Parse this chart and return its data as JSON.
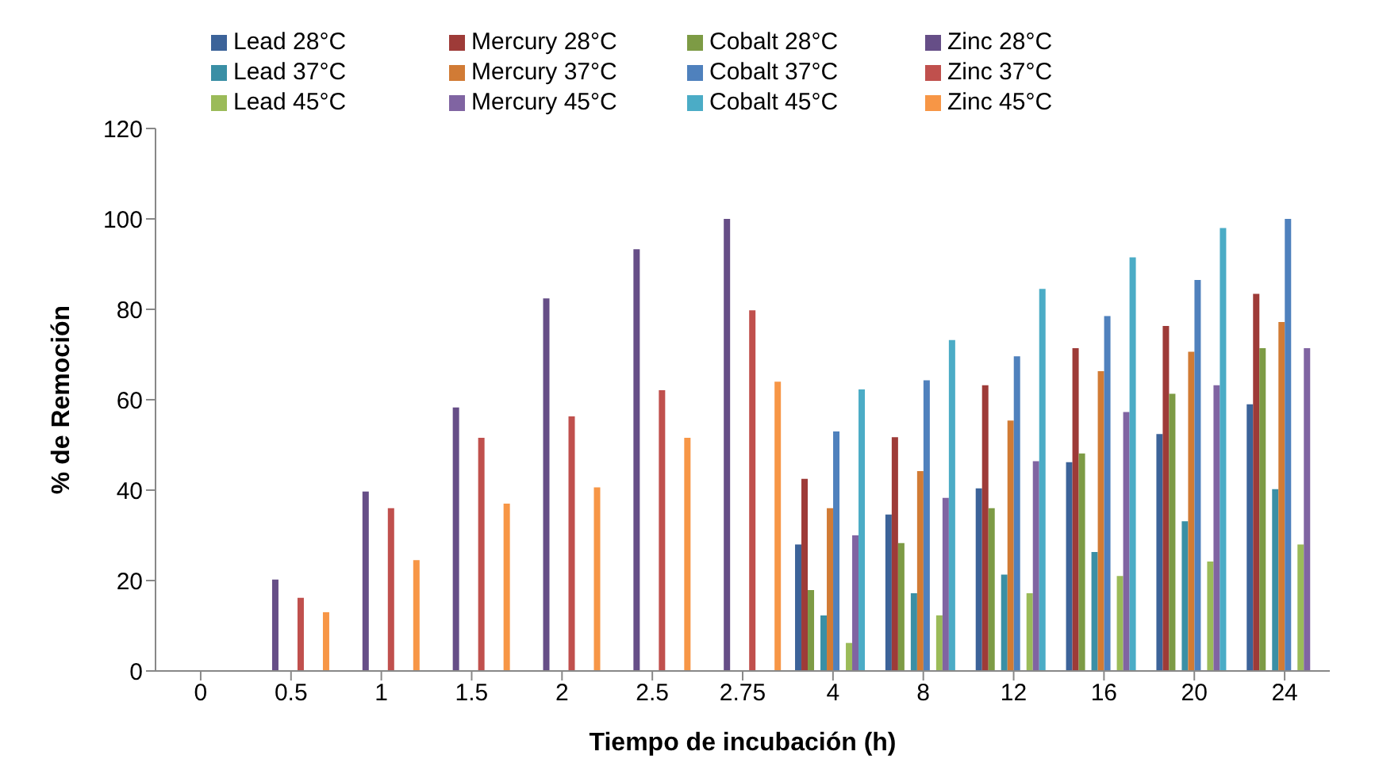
{
  "chart_data": {
    "type": "bar",
    "xlabel": "Tiempo de incubación (h)",
    "ylabel": "% de Remoción",
    "categories": [
      "0",
      "0.5",
      "1",
      "1.5",
      "2",
      "2.5",
      "2.75",
      "4",
      "8",
      "12",
      "16",
      "20",
      "24"
    ],
    "series": [
      {
        "name": "Lead 28°C",
        "color": "#3c6399",
        "values": [
          null,
          null,
          null,
          null,
          null,
          null,
          null,
          28,
          34.6,
          40.4,
          46.2,
          52.4,
          59
        ]
      },
      {
        "name": "Mercury 28°C",
        "color": "#9e3b38",
        "values": [
          null,
          null,
          null,
          null,
          null,
          null,
          null,
          42.5,
          51.7,
          63.2,
          71.4,
          76.3,
          83.4
        ]
      },
      {
        "name": "Cobalt 28°C",
        "color": "#7d9b45",
        "values": [
          null,
          null,
          null,
          null,
          null,
          null,
          null,
          17.9,
          28.3,
          36,
          48.1,
          61.3,
          71.4
        ]
      },
      {
        "name": "Zinc 28°C",
        "color": "#664e87",
        "values": [
          0,
          20.2,
          39.7,
          58.3,
          82.4,
          93.3,
          100,
          null,
          null,
          null,
          null,
          null,
          null
        ]
      },
      {
        "name": "Lead 37°C",
        "color": "#3a8fa5",
        "values": [
          null,
          null,
          null,
          null,
          null,
          null,
          null,
          12.3,
          17.2,
          21.3,
          26.3,
          33.1,
          40.2
        ]
      },
      {
        "name": "Mercury 37°C",
        "color": "#d17b35",
        "values": [
          null,
          null,
          null,
          null,
          null,
          null,
          null,
          36,
          44.2,
          55.4,
          66.3,
          70.6,
          77.2
        ]
      },
      {
        "name": "Cobalt 37°C",
        "color": "#4f81bd",
        "values": [
          null,
          null,
          null,
          null,
          null,
          null,
          null,
          53,
          64.3,
          69.6,
          78.5,
          86.5,
          100
        ]
      },
      {
        "name": "Zinc 37°C",
        "color": "#c0504d",
        "values": [
          0,
          16.2,
          36,
          51.6,
          56.3,
          62.1,
          79.8,
          null,
          null,
          null,
          null,
          null,
          null
        ]
      },
      {
        "name": "Lead 45°C",
        "color": "#9bbb59",
        "values": [
          null,
          null,
          null,
          null,
          null,
          null,
          null,
          6.2,
          12.3,
          17.2,
          21,
          24.2,
          28
        ]
      },
      {
        "name": "Mercury 45°C",
        "color": "#8064a2",
        "values": [
          null,
          null,
          null,
          null,
          null,
          null,
          null,
          30,
          38.3,
          46.4,
          57.3,
          63.2,
          71.4
        ]
      },
      {
        "name": "Cobalt 45°C",
        "color": "#4bacc6",
        "values": [
          null,
          null,
          null,
          null,
          null,
          null,
          null,
          62.3,
          73.2,
          84.5,
          91.5,
          98,
          null
        ]
      },
      {
        "name": "Zinc 45°C",
        "color": "#f79646",
        "values": [
          0,
          13,
          24.5,
          37,
          40.6,
          51.6,
          64,
          null,
          null,
          null,
          null,
          null,
          null
        ]
      }
    ],
    "ylim": [
      0,
      120
    ],
    "yticks": [
      0,
      20,
      40,
      60,
      80,
      100,
      120
    ],
    "grid": false,
    "legend": "top"
  }
}
